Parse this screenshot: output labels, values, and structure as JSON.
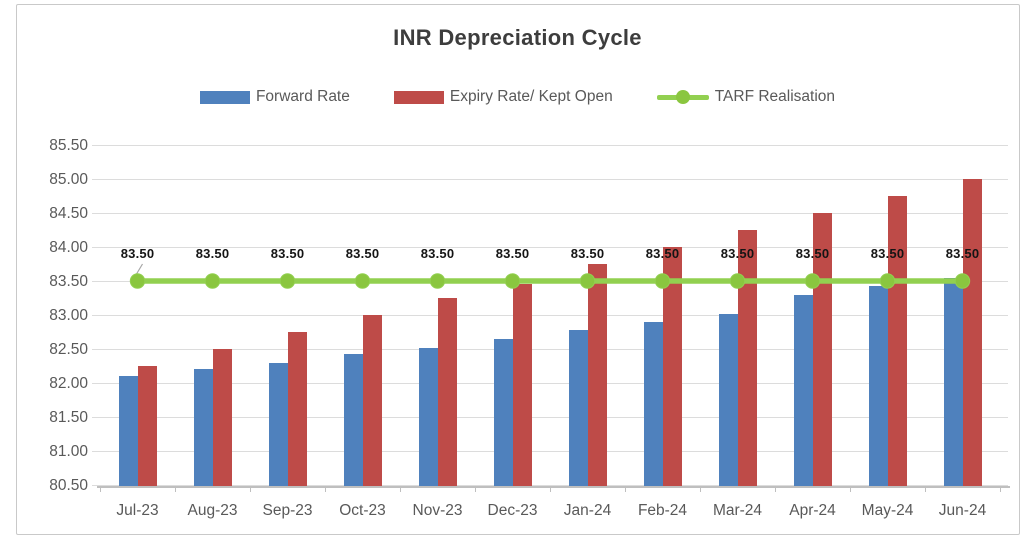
{
  "chart_data": {
    "type": "bar+line",
    "title": "INR Depreciation Cycle",
    "categories": [
      "Jul-23",
      "Aug-23",
      "Sep-23",
      "Oct-23",
      "Nov-23",
      "Dec-23",
      "Jan-24",
      "Feb-24",
      "Mar-24",
      "Apr-24",
      "May-24",
      "Jun-24"
    ],
    "series": [
      {
        "name": "Forward Rate",
        "type": "bar",
        "color": "#4F81BD",
        "values": [
          82.1,
          82.2,
          82.3,
          82.42,
          82.52,
          82.65,
          82.78,
          82.9,
          83.02,
          83.3,
          83.42,
          83.55
        ]
      },
      {
        "name": "Expiry Rate/ Kept Open",
        "type": "bar",
        "color": "#BE4B48",
        "values": [
          82.25,
          82.5,
          82.75,
          83.0,
          83.25,
          83.45,
          83.75,
          84.0,
          84.25,
          84.5,
          84.75,
          85.0
        ]
      },
      {
        "name": "TARF Realisation",
        "type": "line",
        "color": "#92D050",
        "marker_color": "#8AC63F",
        "values": [
          83.5,
          83.5,
          83.5,
          83.5,
          83.5,
          83.5,
          83.5,
          83.5,
          83.5,
          83.5,
          83.5,
          83.5
        ],
        "data_label_text": "83.50"
      }
    ],
    "xlabel": "",
    "ylabel": "",
    "ylim": [
      80.5,
      85.5
    ],
    "ytick_step": 0.5,
    "ytick_labels": [
      "85.50",
      "85.00",
      "84.50",
      "84.00",
      "83.50",
      "83.00",
      "82.50",
      "82.00",
      "81.50",
      "81.00",
      "80.50"
    ],
    "grid": true,
    "legend_position": "top"
  }
}
